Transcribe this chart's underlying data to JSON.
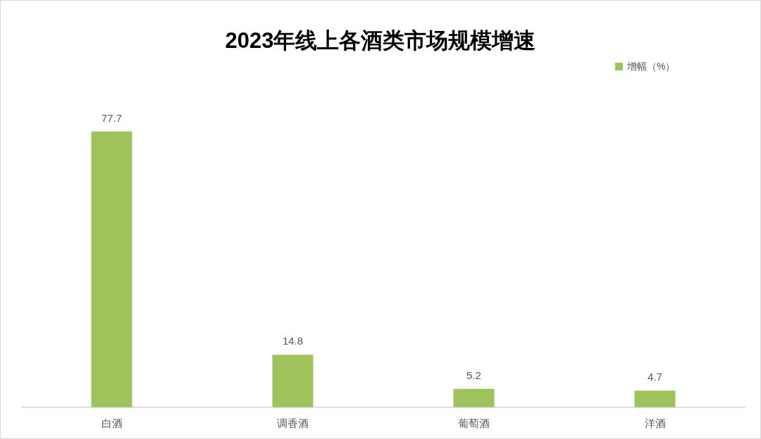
{
  "chart_data": {
    "type": "bar",
    "title": "2023年线上各酒类市场规模增速",
    "categories": [
      "白酒",
      "调香酒",
      "葡萄酒",
      "洋酒"
    ],
    "series": [
      {
        "name": "增幅（%）",
        "color": "#9dc35a",
        "values": [
          77.7,
          14.8,
          5.2,
          4.7
        ]
      }
    ],
    "data_labels": true,
    "legend": "top right"
  }
}
